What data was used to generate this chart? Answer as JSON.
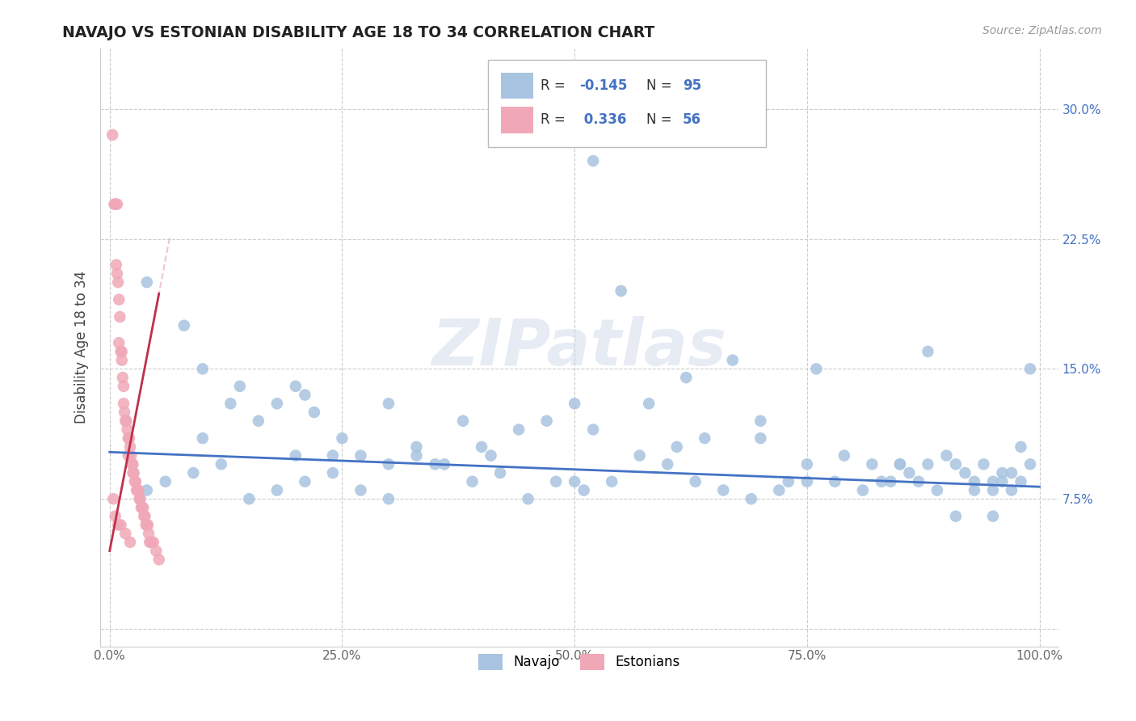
{
  "title": "NAVAJO VS ESTONIAN DISABILITY AGE 18 TO 34 CORRELATION CHART",
  "source_text": "Source: ZipAtlas.com",
  "ylabel": "Disability Age 18 to 34",
  "xlim": [
    -0.01,
    1.02
  ],
  "ylim": [
    -0.01,
    0.335
  ],
  "xticks": [
    0.0,
    0.25,
    0.5,
    0.75,
    1.0
  ],
  "xtick_labels": [
    "0.0%",
    "25.0%",
    "50.0%",
    "75.0%",
    "100.0%"
  ],
  "yticks": [
    0.0,
    0.075,
    0.15,
    0.225,
    0.3
  ],
  "ytick_labels": [
    "",
    "7.5%",
    "15.0%",
    "22.5%",
    "30.0%"
  ],
  "navajo_R": -0.145,
  "navajo_N": 95,
  "estonian_R": 0.336,
  "estonian_N": 56,
  "navajo_color": "#a8c4e0",
  "estonian_color": "#f0a8b8",
  "navajo_line_color": "#4472c4",
  "estonian_line_color": "#c0304a",
  "estonian_line_dash_color": "#e8a0b0",
  "background_color": "#ffffff",
  "grid_color": "#cccccc",
  "navajo_intercept": 0.102,
  "navajo_slope": -0.02,
  "estonian_intercept": 0.045,
  "estonian_slope": 2.8,
  "navajo_x": [
    0.04,
    0.08,
    0.1,
    0.13,
    0.14,
    0.16,
    0.18,
    0.2,
    0.21,
    0.22,
    0.24,
    0.25,
    0.27,
    0.3,
    0.33,
    0.35,
    0.38,
    0.41,
    0.44,
    0.47,
    0.5,
    0.52,
    0.55,
    0.58,
    0.61,
    0.64,
    0.67,
    0.7,
    0.73,
    0.76,
    0.79,
    0.82,
    0.84,
    0.86,
    0.88,
    0.9,
    0.91,
    0.92,
    0.93,
    0.94,
    0.95,
    0.96,
    0.97,
    0.98,
    0.99,
    0.99,
    0.98,
    0.97,
    0.95,
    0.93,
    0.91,
    0.89,
    0.87,
    0.85,
    0.83,
    0.81,
    0.78,
    0.75,
    0.72,
    0.69,
    0.66,
    0.63,
    0.6,
    0.57,
    0.54,
    0.51,
    0.48,
    0.45,
    0.42,
    0.39,
    0.36,
    0.33,
    0.3,
    0.27,
    0.24,
    0.21,
    0.18,
    0.15,
    0.12,
    0.09,
    0.06,
    0.04,
    0.52,
    0.7,
    0.88,
    0.96,
    0.62,
    0.4,
    0.2,
    0.1,
    0.3,
    0.5,
    0.75,
    0.85,
    0.95
  ],
  "navajo_y": [
    0.2,
    0.175,
    0.15,
    0.13,
    0.14,
    0.12,
    0.13,
    0.14,
    0.135,
    0.125,
    0.1,
    0.11,
    0.1,
    0.13,
    0.105,
    0.095,
    0.12,
    0.1,
    0.115,
    0.12,
    0.13,
    0.27,
    0.195,
    0.13,
    0.105,
    0.11,
    0.155,
    0.11,
    0.085,
    0.15,
    0.1,
    0.095,
    0.085,
    0.09,
    0.16,
    0.1,
    0.095,
    0.09,
    0.085,
    0.095,
    0.08,
    0.085,
    0.09,
    0.085,
    0.15,
    0.095,
    0.105,
    0.08,
    0.085,
    0.08,
    0.065,
    0.08,
    0.085,
    0.095,
    0.085,
    0.08,
    0.085,
    0.095,
    0.08,
    0.075,
    0.08,
    0.085,
    0.095,
    0.1,
    0.085,
    0.08,
    0.085,
    0.075,
    0.09,
    0.085,
    0.095,
    0.1,
    0.075,
    0.08,
    0.09,
    0.085,
    0.08,
    0.075,
    0.095,
    0.09,
    0.085,
    0.08,
    0.115,
    0.12,
    0.095,
    0.09,
    0.145,
    0.105,
    0.1,
    0.11,
    0.095,
    0.085,
    0.085,
    0.095,
    0.065
  ],
  "estonian_x": [
    0.003,
    0.005,
    0.006,
    0.007,
    0.008,
    0.008,
    0.009,
    0.01,
    0.01,
    0.011,
    0.012,
    0.013,
    0.013,
    0.014,
    0.015,
    0.015,
    0.016,
    0.017,
    0.018,
    0.019,
    0.02,
    0.02,
    0.021,
    0.022,
    0.023,
    0.024,
    0.025,
    0.025,
    0.026,
    0.027,
    0.028,
    0.029,
    0.03,
    0.031,
    0.032,
    0.033,
    0.034,
    0.035,
    0.036,
    0.037,
    0.038,
    0.039,
    0.04,
    0.041,
    0.042,
    0.043,
    0.045,
    0.047,
    0.05,
    0.053,
    0.004,
    0.006,
    0.009,
    0.012,
    0.017,
    0.022
  ],
  "estonian_y": [
    0.285,
    0.245,
    0.245,
    0.21,
    0.205,
    0.245,
    0.2,
    0.19,
    0.165,
    0.18,
    0.16,
    0.16,
    0.155,
    0.145,
    0.14,
    0.13,
    0.125,
    0.12,
    0.12,
    0.115,
    0.11,
    0.1,
    0.11,
    0.105,
    0.1,
    0.095,
    0.095,
    0.09,
    0.09,
    0.085,
    0.085,
    0.08,
    0.08,
    0.08,
    0.075,
    0.075,
    0.07,
    0.07,
    0.07,
    0.065,
    0.065,
    0.06,
    0.06,
    0.06,
    0.055,
    0.05,
    0.05,
    0.05,
    0.045,
    0.04,
    0.075,
    0.065,
    0.06,
    0.06,
    0.055,
    0.05
  ]
}
